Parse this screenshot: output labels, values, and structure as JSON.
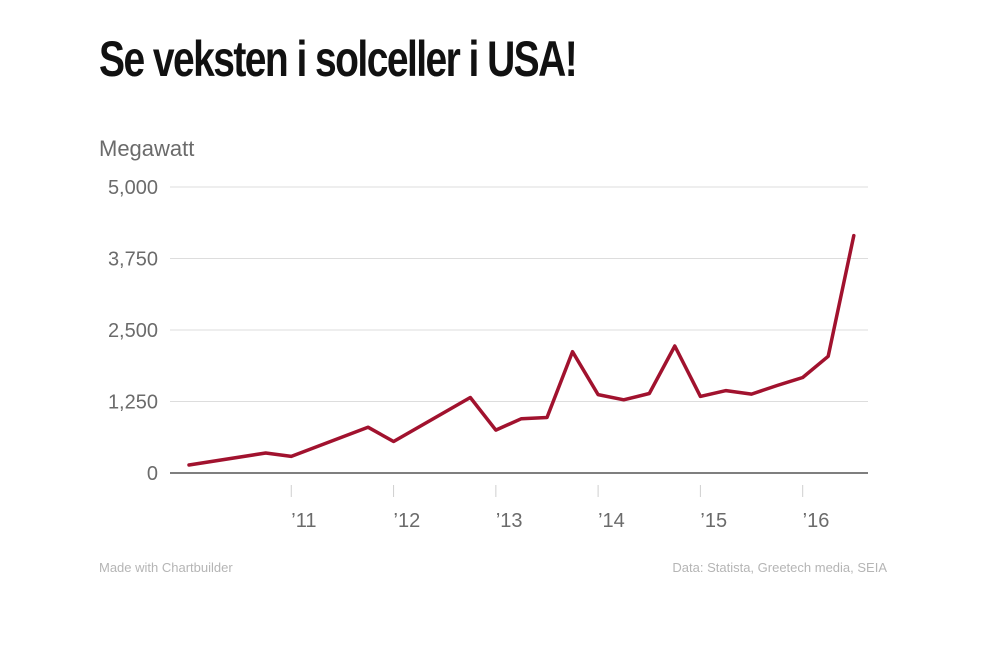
{
  "header": {
    "title": "Se veksten i solceller i USA!"
  },
  "footer": {
    "made_with": "Made with Chartbuilder",
    "source": "Data: Statista, Greetech media, SEIA"
  },
  "colors": {
    "line": "#a1122e",
    "grid": "#dddddd",
    "axis": "#333333",
    "text": "#6b6b6b"
  },
  "chart_data": {
    "type": "line",
    "title": "Se veksten i solceller i USA!",
    "ylabel": "Megawatt",
    "xlabel": "",
    "ylim": [
      0,
      5000
    ],
    "yticks": [
      "5,000",
      "3,750",
      "2,500",
      "1,250",
      "0"
    ],
    "ytick_values": [
      5000,
      3750,
      2500,
      1250,
      0
    ],
    "xlim": [
      2010.0,
      2016.58
    ],
    "xticks": [
      "’11",
      "’12",
      "’13",
      "’14",
      "’15",
      "’16"
    ],
    "xtick_values": [
      2011,
      2012,
      2013,
      2014,
      2015,
      2016
    ],
    "grid": true,
    "series": [
      {
        "x": [
          2010.0,
          2010.75,
          2011.0,
          2011.75,
          2012.0,
          2012.75,
          2013.0,
          2013.25,
          2013.5,
          2013.75,
          2014.0,
          2014.25,
          2014.5,
          2014.75,
          2015.0,
          2015.25,
          2015.5,
          2015.75,
          2016.0,
          2016.25,
          2016.5
        ],
        "y": [
          140,
          350,
          290,
          800,
          550,
          1320,
          750,
          950,
          970,
          2120,
          1370,
          1280,
          1390,
          2220,
          1340,
          1440,
          1380,
          1530,
          1670,
          2040,
          4150
        ]
      }
    ]
  }
}
